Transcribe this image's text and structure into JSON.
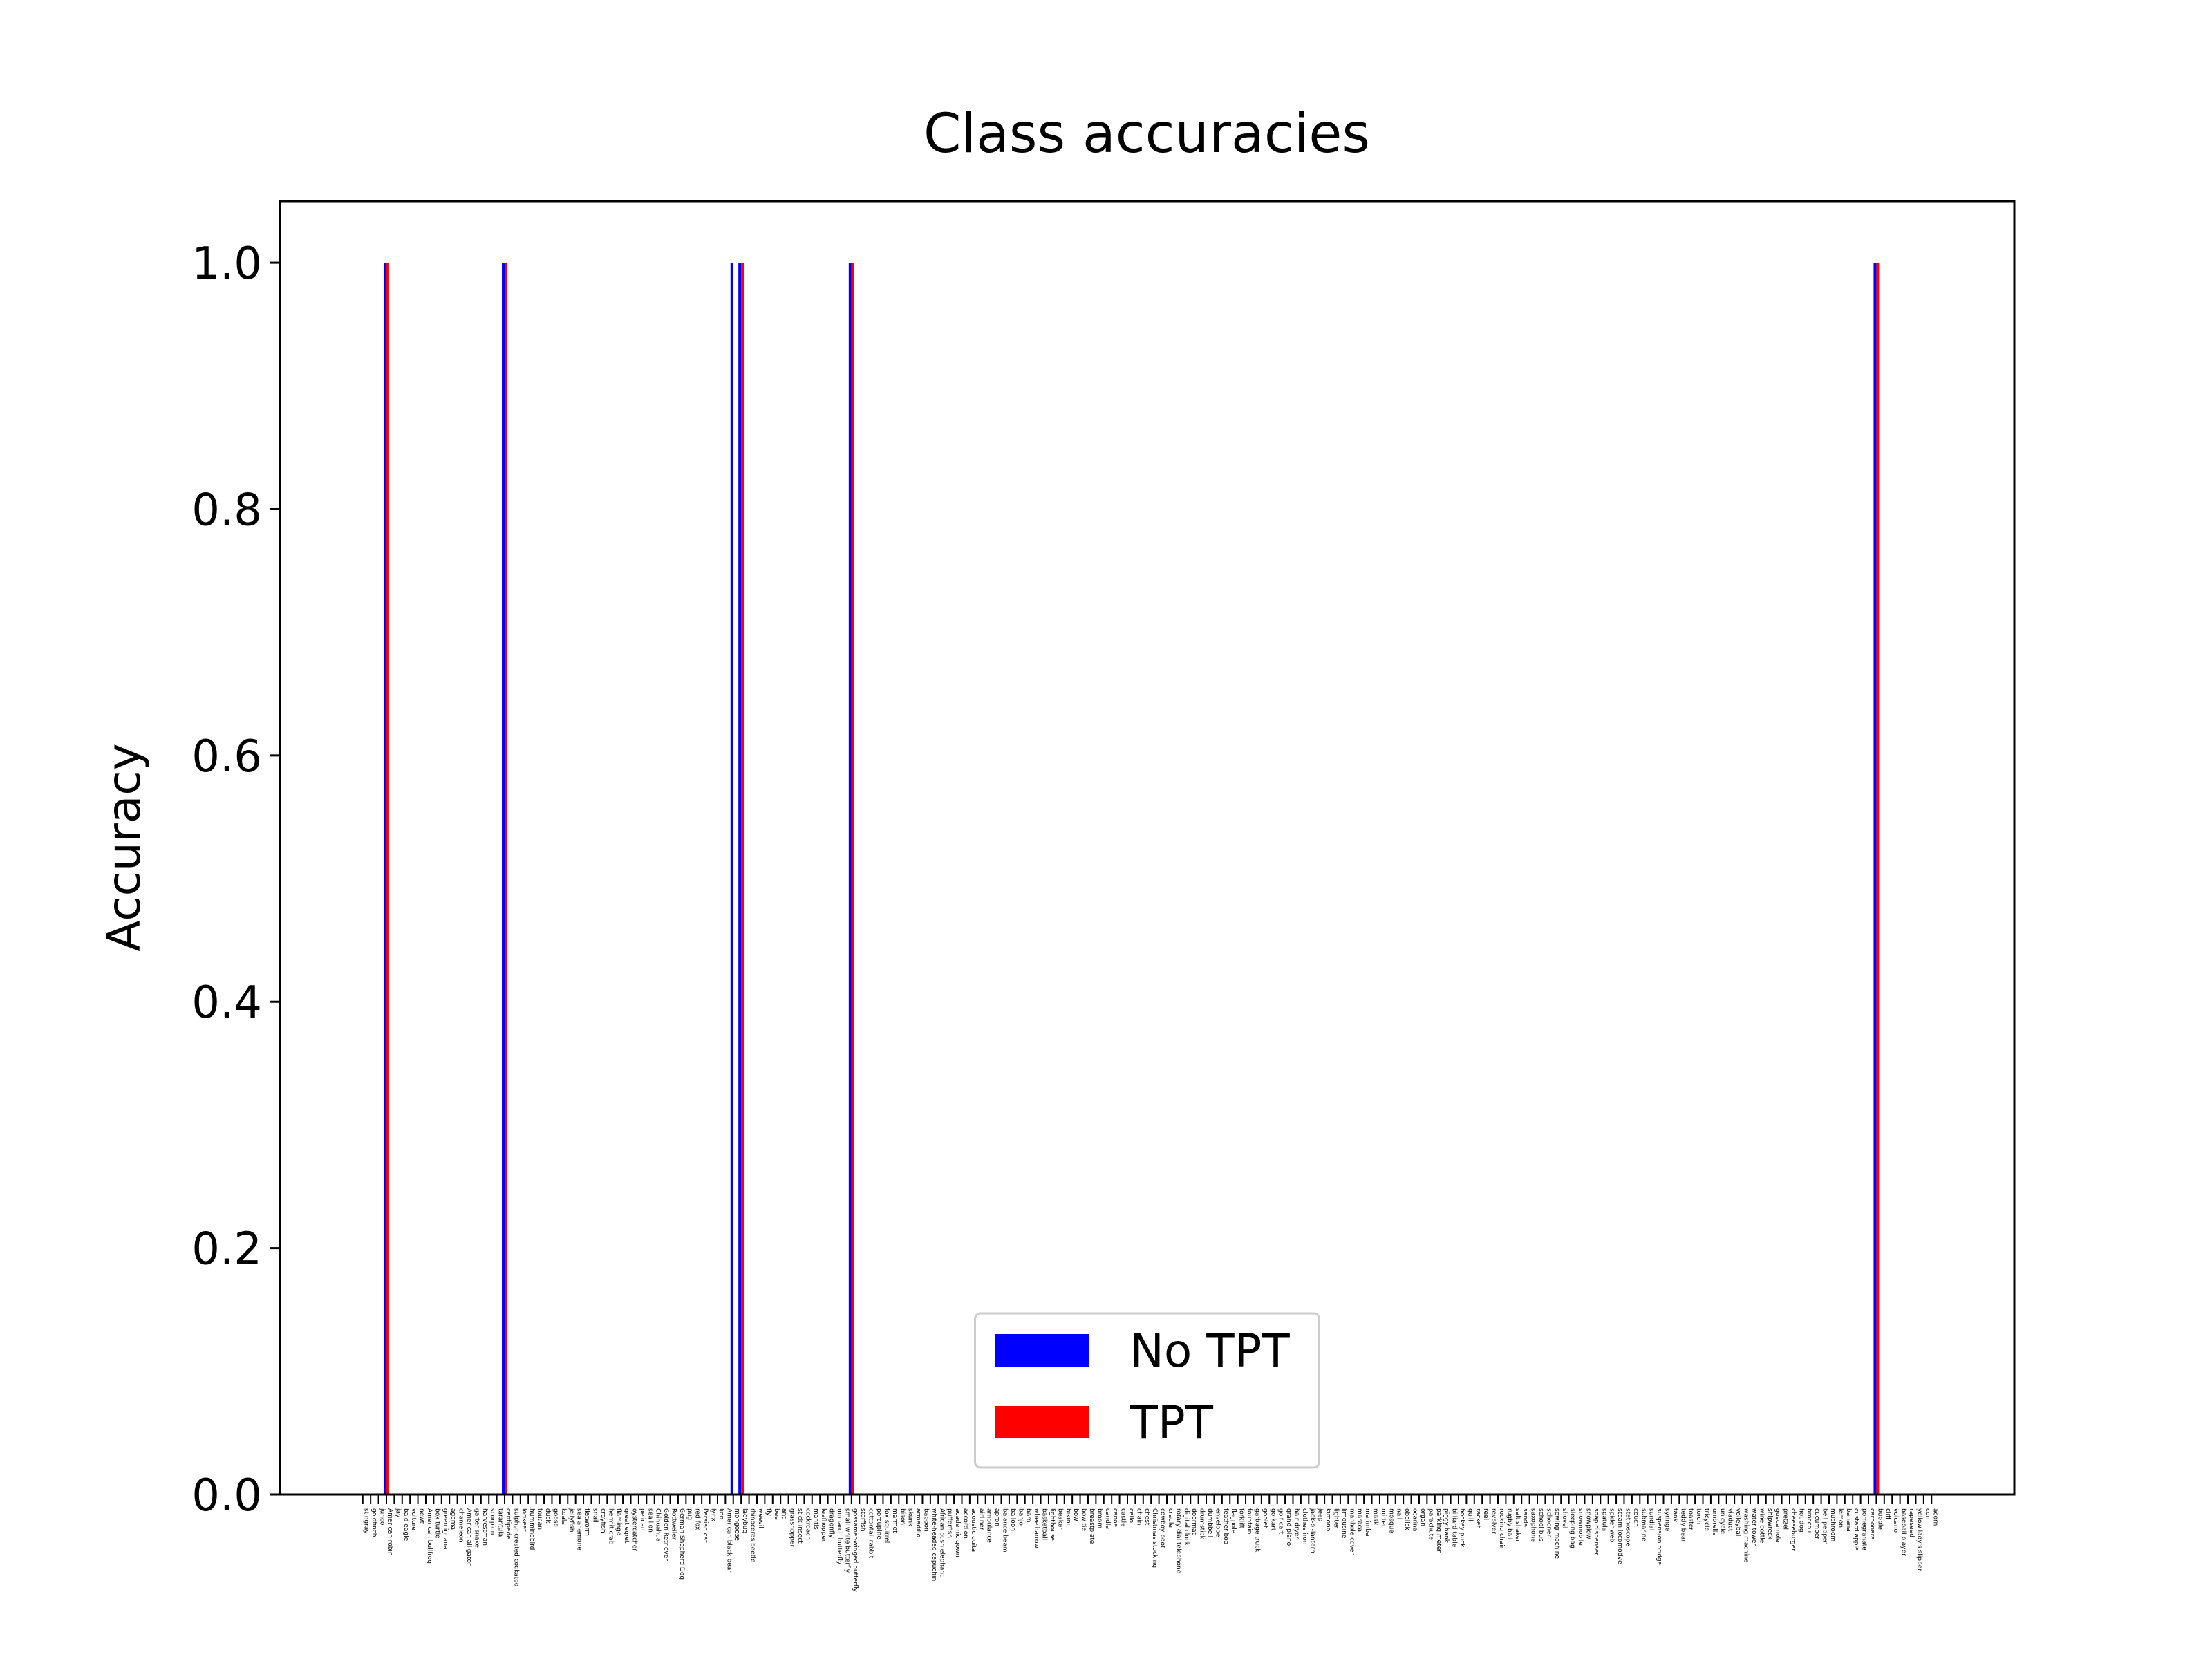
{
  "chart_data": {
    "type": "bar",
    "title": "Class accuracies",
    "y_label": "Accuracy",
    "categories": [
      "stingray",
      "goldfinch",
      "junco",
      "American robin",
      "jay",
      "bald eagle",
      "vulture",
      "newt",
      "American bullfrog",
      "box turtle",
      "green iguana",
      "agama",
      "chameleon",
      "American alligator",
      "garter snake",
      "harvestman",
      "scorpion",
      "tarantula",
      "centipede",
      "sulphur-crested cockatoo",
      "lorikeet",
      "hummingbird",
      "toucan",
      "duck",
      "goose",
      "koala",
      "jellyfish",
      "sea anemone",
      "flatworm",
      "snail",
      "crayfish",
      "hermit crab",
      "flamingo",
      "great egret",
      "oystercatcher",
      "pelican",
      "sea lion",
      "Chihuahua",
      "Golden Retriever",
      "Rottweiler",
      "German Shepherd Dog",
      "pug",
      "red fox",
      "Persian cat",
      "lynx",
      "lion",
      "American black bear",
      "mongoose",
      "ladybug",
      "rhinoceros beetle",
      "weevil",
      "fly",
      "bee",
      "ant",
      "grasshopper",
      "stick insect",
      "cockroach",
      "mantis",
      "leafhopper",
      "dragonfly",
      "monarch butterfly",
      "small white butterfly",
      "gossamer-winged butterfly",
      "starfish",
      "cottontail rabbit",
      "porcupine",
      "fox squirrel",
      "marmot",
      "bison",
      "skunk",
      "armadillo",
      "baboon",
      "white-headed capuchin",
      "African bush elephant",
      "pufferfish",
      "academic gown",
      "accordion",
      "acoustic guitar",
      "airliner",
      "ambulance",
      "apron",
      "balance beam",
      "balloon",
      "banjo",
      "barn",
      "wheelbarrow",
      "basketball",
      "lighthouse",
      "beaker",
      "bikini",
      "bow",
      "bow tie",
      "breastplate",
      "broom",
      "candle",
      "canoe",
      "castle",
      "cello",
      "chain",
      "chest",
      "Christmas stocking",
      "cowboy boot",
      "cradle",
      "rotary dial telephone",
      "digital clock",
      "doormat",
      "drumstick",
      "dumbbell",
      "envelope",
      "feather boa",
      "flagpole",
      "forklift",
      "fountain",
      "garbage truck",
      "goblet",
      "go-kart",
      "golf cart",
      "grand piano",
      "hair dryer",
      "clothes iron",
      "jack-o'-lantern",
      "jeep",
      "kimono",
      "lighter",
      "limousine",
      "manhole cover",
      "maraca",
      "marimba",
      "mask",
      "mitten",
      "mosque",
      "nail",
      "obelisk",
      "ocarina",
      "organ",
      "parachute",
      "parking meter",
      "piggy bank",
      "billiard table",
      "hockey puck",
      "quill",
      "racket",
      "reel",
      "revolver",
      "rocking chair",
      "rugby ball",
      "salt shaker",
      "sandal",
      "saxophone",
      "school bus",
      "schooner",
      "sewing machine",
      "shovel",
      "sleeping bag",
      "snowmobile",
      "snowplow",
      "soap dispenser",
      "spatula",
      "spider web",
      "steam locomotive",
      "stethoscope",
      "couch",
      "submarine",
      "sundial",
      "suspension bridge",
      "syringe",
      "tank",
      "teddy bear",
      "toaster",
      "torch",
      "tricycle",
      "umbrella",
      "unicycle",
      "viaduct",
      "volleyball",
      "washing machine",
      "water tower",
      "wine bottle",
      "shipwreck",
      "guacamole",
      "pretzel",
      "cheeseburger",
      "hot dog",
      "broccoli",
      "cucumber",
      "bell pepper",
      "mushroom",
      "lemon",
      "banana",
      "custard apple",
      "pomegranate",
      "carbonara",
      "bubble",
      "cliff",
      "volcano",
      "baseball player",
      "rapeseed",
      "yellow lady's slipper",
      "corn",
      "acorn"
    ],
    "series": [
      {
        "name": "No TPT",
        "color": "#0000ff",
        "values": [
          0,
          0,
          0,
          1,
          0,
          0,
          0,
          0,
          0,
          0,
          0,
          0,
          0,
          0,
          0,
          0,
          0,
          0,
          1,
          0,
          0,
          0,
          0,
          0,
          0,
          0,
          0,
          0,
          0,
          0,
          0,
          0,
          0,
          0,
          0,
          0,
          0,
          0,
          0,
          0,
          0,
          0,
          0,
          0,
          0,
          0,
          0,
          1,
          1,
          0,
          0,
          0,
          0,
          0,
          0,
          0,
          0,
          0,
          0,
          0,
          0,
          0,
          1,
          0,
          0,
          0,
          0,
          0,
          0,
          0,
          0,
          0,
          0,
          0,
          0,
          0,
          0,
          0,
          0,
          0,
          0,
          0,
          0,
          0,
          0,
          0,
          0,
          0,
          0,
          0,
          0,
          0,
          0,
          0,
          0,
          0,
          0,
          0,
          0,
          0,
          0,
          0,
          0,
          0,
          0,
          0,
          0,
          0,
          0,
          0,
          0,
          0,
          0,
          0,
          0,
          0,
          0,
          0,
          0,
          0,
          0,
          0,
          0,
          0,
          0,
          0,
          0,
          0,
          0,
          0,
          0,
          0,
          0,
          0,
          0,
          0,
          0,
          0,
          0,
          0,
          0,
          0,
          0,
          0,
          0,
          0,
          0,
          0,
          0,
          0,
          0,
          0,
          0,
          0,
          0,
          0,
          0,
          0,
          0,
          0,
          0,
          0,
          0,
          0,
          0,
          0,
          0,
          0,
          0,
          0,
          0,
          0,
          0,
          0,
          0,
          0,
          0,
          0,
          0,
          0,
          0,
          0,
          0,
          0,
          0,
          0,
          0,
          0,
          0,
          0,
          0,
          0,
          1,
          0,
          0,
          0,
          0,
          0,
          0,
          0
        ]
      },
      {
        "name": "TPT",
        "color": "#ff0000",
        "values": [
          0,
          0,
          0,
          1,
          0,
          0,
          0,
          0,
          0,
          0,
          0,
          0,
          0,
          0,
          0,
          0,
          0,
          0,
          1,
          0,
          0,
          0,
          0,
          0,
          0,
          0,
          0,
          0,
          0,
          0,
          0,
          0,
          0,
          0,
          0,
          0,
          0,
          0,
          0,
          0,
          0,
          0,
          0,
          0,
          0,
          0,
          0,
          0,
          1,
          0,
          0,
          0,
          0,
          0,
          0,
          0,
          0,
          0,
          0,
          0,
          0,
          0,
          1,
          0,
          0,
          0,
          0,
          0,
          0,
          0,
          0,
          0,
          0,
          0,
          0,
          0,
          0,
          0,
          0,
          0,
          0,
          0,
          0,
          0,
          0,
          0,
          0,
          0,
          0,
          0,
          0,
          0,
          0,
          0,
          0,
          0,
          0,
          0,
          0,
          0,
          0,
          0,
          0,
          0,
          0,
          0,
          0,
          0,
          0,
          0,
          0,
          0,
          0,
          0,
          0,
          0,
          0,
          0,
          0,
          0,
          0,
          0,
          0,
          0,
          0,
          0,
          0,
          0,
          0,
          0,
          0,
          0,
          0,
          0,
          0,
          0,
          0,
          0,
          0,
          0,
          0,
          0,
          0,
          0,
          0,
          0,
          0,
          0,
          0,
          0,
          0,
          0,
          0,
          0,
          0,
          0,
          0,
          0,
          0,
          0,
          0,
          0,
          0,
          0,
          0,
          0,
          0,
          0,
          0,
          0,
          0,
          0,
          0,
          0,
          0,
          0,
          0,
          0,
          0,
          0,
          0,
          0,
          0,
          0,
          0,
          0,
          0,
          0,
          0,
          0,
          0,
          0,
          1,
          0,
          0,
          0,
          0,
          0,
          0,
          0
        ]
      }
    ],
    "ylim": [
      0,
      1.05
    ],
    "yticks": [
      {
        "value": 0,
        "label": "0.0"
      },
      0.2,
      0.4,
      0.6,
      0.8,
      {
        "value": 1,
        "label": "1.0"
      }
    ],
    "legend": "lower center",
    "grid": false
  }
}
